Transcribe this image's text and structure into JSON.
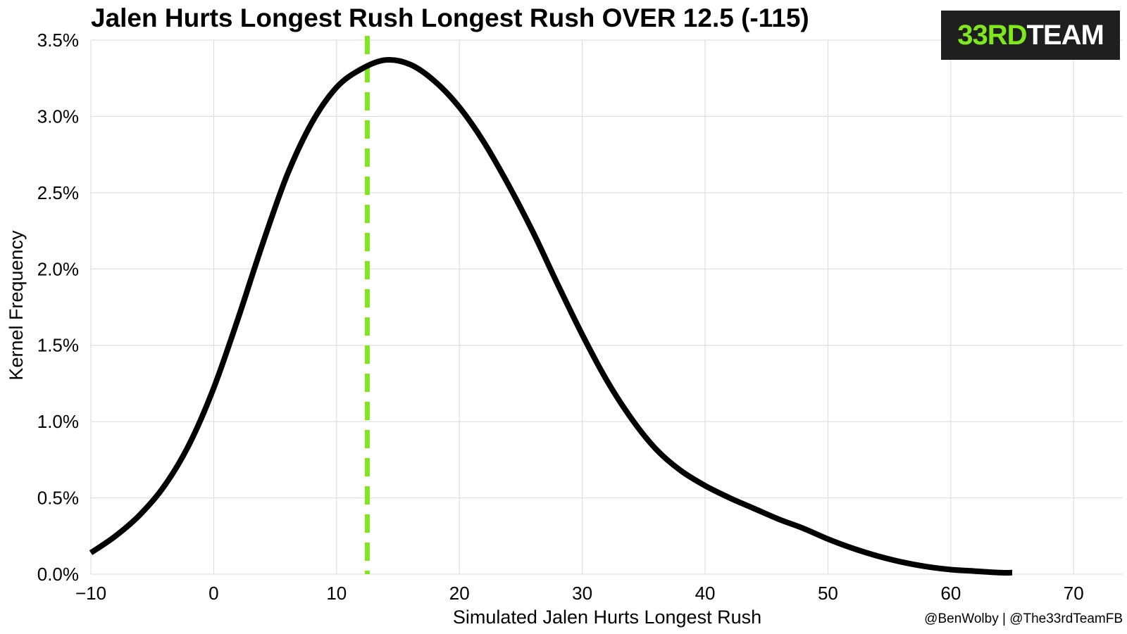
{
  "chart_data": {
    "type": "line",
    "title": "Jalen Hurts Longest Rush Longest Rush OVER 12.5 (-115)",
    "xlabel": "Simulated Jalen Hurts Longest Rush",
    "ylabel": "Kernel Frequency",
    "xlim": [
      -10,
      74
    ],
    "ylim": [
      0,
      3.5
    ],
    "x_ticks": [
      -10,
      0,
      10,
      20,
      30,
      40,
      50,
      60,
      70
    ],
    "x_tick_labels": [
      "−10",
      "0",
      "10",
      "20",
      "30",
      "40",
      "50",
      "60",
      "70"
    ],
    "y_ticks": [
      0,
      0.5,
      1.0,
      1.5,
      2.0,
      2.5,
      3.0,
      3.5
    ],
    "y_tick_labels": [
      "0.0%",
      "0.5%",
      "1.0%",
      "1.5%",
      "2.0%",
      "2.5%",
      "3.0%",
      "3.5%"
    ],
    "grid": true,
    "series": [
      {
        "x": [
          -10,
          -8,
          -6,
          -4,
          -2,
          0,
          2,
          4,
          6,
          8,
          10,
          12,
          14,
          16,
          18,
          20,
          22,
          24,
          26,
          28,
          30,
          32,
          34,
          36,
          38,
          40,
          42,
          44,
          46,
          48,
          50,
          52,
          54,
          56,
          58,
          60,
          62,
          64,
          65
        ],
        "values": [
          0.14,
          0.25,
          0.39,
          0.58,
          0.85,
          1.22,
          1.68,
          2.17,
          2.62,
          2.96,
          3.19,
          3.31,
          3.37,
          3.34,
          3.23,
          3.06,
          2.83,
          2.55,
          2.24,
          1.9,
          1.57,
          1.27,
          1.02,
          0.82,
          0.68,
          0.58,
          0.5,
          0.43,
          0.36,
          0.3,
          0.23,
          0.17,
          0.12,
          0.08,
          0.05,
          0.03,
          0.02,
          0.01,
          0.01
        ],
        "color": "#000000"
      }
    ],
    "reference_line": {
      "x": 12.5,
      "color": "#80e61e",
      "style": "dashed"
    }
  },
  "logo": {
    "part1": "33RD",
    "part2": "TEAM",
    "accent_color": "#80e61e",
    "background": "#1f1f1f"
  },
  "credit": "@BenWolby | @The33rdTeamFB"
}
